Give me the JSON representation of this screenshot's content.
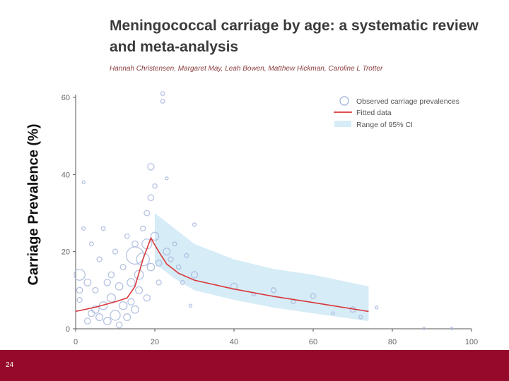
{
  "chart_data": {
    "type": "scatter",
    "title": "Meningococcal carriage by age: a systematic review and meta-analysis",
    "authors": "Hannah Christensen, Margaret May, Leah Bowen, Matthew Hickman, Caroline L Trotter",
    "xlabel": "",
    "ylabel": "Carriage Prevalence (%)",
    "xlim": [
      0,
      100
    ],
    "ylim": [
      0,
      60
    ],
    "x_ticks": [
      "0",
      "20",
      "40",
      "60",
      "80",
      "100"
    ],
    "y_ticks": [
      "0",
      "20",
      "40",
      "60"
    ],
    "legend": {
      "placement": "top-right",
      "entries": [
        "Observed carriage prevalences",
        "Fitted data",
        "Range of 95% CI"
      ]
    },
    "series": [
      {
        "name": "Fitted data",
        "x": [
          0,
          5,
          10,
          13,
          15,
          17,
          19,
          21,
          23,
          26,
          30,
          40,
          50,
          60,
          74
        ],
        "y": [
          4.5,
          5.6,
          7,
          8,
          11,
          18,
          23.5,
          20,
          16.8,
          14.4,
          12.6,
          10.3,
          8.4,
          6.8,
          4.5
        ]
      },
      {
        "name": "Range of 95% CI",
        "x": [
          20,
          25,
          30,
          40,
          50,
          60,
          74
        ],
        "upper": [
          30,
          26,
          22,
          18,
          15.5,
          14,
          11
        ],
        "lower": [
          17,
          13,
          10,
          7.5,
          5.5,
          4,
          2
        ]
      },
      {
        "name": "Observed carriage prevalences",
        "points": [
          [
            1,
            14,
            2.2
          ],
          [
            1,
            10,
            1.2
          ],
          [
            1,
            7.5,
            1
          ],
          [
            2,
            38,
            0.6
          ],
          [
            2,
            26,
            0.7
          ],
          [
            3,
            12,
            1.4
          ],
          [
            3,
            2,
            1.2
          ],
          [
            4,
            4,
            1.3
          ],
          [
            4,
            22,
            0.8
          ],
          [
            5,
            10,
            1.1
          ],
          [
            5,
            5,
            1.5
          ],
          [
            6,
            3,
            1.4
          ],
          [
            6,
            18,
            1
          ],
          [
            7,
            26,
            0.8
          ],
          [
            7,
            6,
            1.6
          ],
          [
            8,
            12,
            1.3
          ],
          [
            8,
            2,
            1.5
          ],
          [
            9,
            14,
            1.2
          ],
          [
            9,
            8,
            1.7
          ],
          [
            10,
            3.5,
            2
          ],
          [
            10,
            20,
            1
          ],
          [
            11,
            11,
            1.5
          ],
          [
            11,
            1,
            1.2
          ],
          [
            12,
            6,
            1.6
          ],
          [
            12,
            16,
            1.1
          ],
          [
            13,
            24,
            0.9
          ],
          [
            13,
            3,
            1.4
          ],
          [
            14,
            12,
            1.6
          ],
          [
            14,
            7,
            1.3
          ],
          [
            15,
            19,
            3.5
          ],
          [
            15,
            22,
            1.2
          ],
          [
            15,
            5,
            1.5
          ],
          [
            16,
            14,
            1.8
          ],
          [
            16,
            10,
            1.4
          ],
          [
            17,
            26,
            1
          ],
          [
            17,
            18,
            2.6
          ],
          [
            18,
            30,
            1.1
          ],
          [
            18,
            22,
            2
          ],
          [
            18,
            8,
            1.3
          ],
          [
            19,
            42,
            1.3
          ],
          [
            19,
            34,
            1.2
          ],
          [
            19,
            16,
            1.5
          ],
          [
            20,
            24,
            1.6
          ],
          [
            20,
            37,
            0.9
          ],
          [
            21,
            17,
            1.2
          ],
          [
            21,
            12,
            1
          ],
          [
            22,
            61,
            0.8
          ],
          [
            22,
            59,
            0.8
          ],
          [
            23,
            39,
            0.6
          ],
          [
            23,
            20,
            1.4
          ],
          [
            24,
            18,
            1
          ],
          [
            25,
            22,
            0.8
          ],
          [
            26,
            16,
            0.9
          ],
          [
            27,
            12,
            0.8
          ],
          [
            28,
            19,
            0.8
          ],
          [
            29,
            6,
            0.6
          ],
          [
            30,
            27,
            0.7
          ],
          [
            30,
            14,
            1.3
          ],
          [
            40,
            11,
            1.3
          ],
          [
            45,
            9,
            0.7
          ],
          [
            50,
            10,
            1
          ],
          [
            55,
            7,
            0.8
          ],
          [
            60,
            8.5,
            1
          ],
          [
            65,
            4,
            0.6
          ],
          [
            70,
            5,
            1.1
          ],
          [
            72,
            3,
            0.7
          ],
          [
            76,
            5.5,
            0.6
          ],
          [
            88,
            0.1,
            0.5
          ],
          [
            95,
            0.1,
            0.5
          ]
        ]
      }
    ]
  },
  "slide": {
    "page_number": "24"
  },
  "colors": {
    "footer": "#950a2b",
    "fit": "#d9383a",
    "ci": "#d6ecf7",
    "points": "#a9b9dd"
  }
}
